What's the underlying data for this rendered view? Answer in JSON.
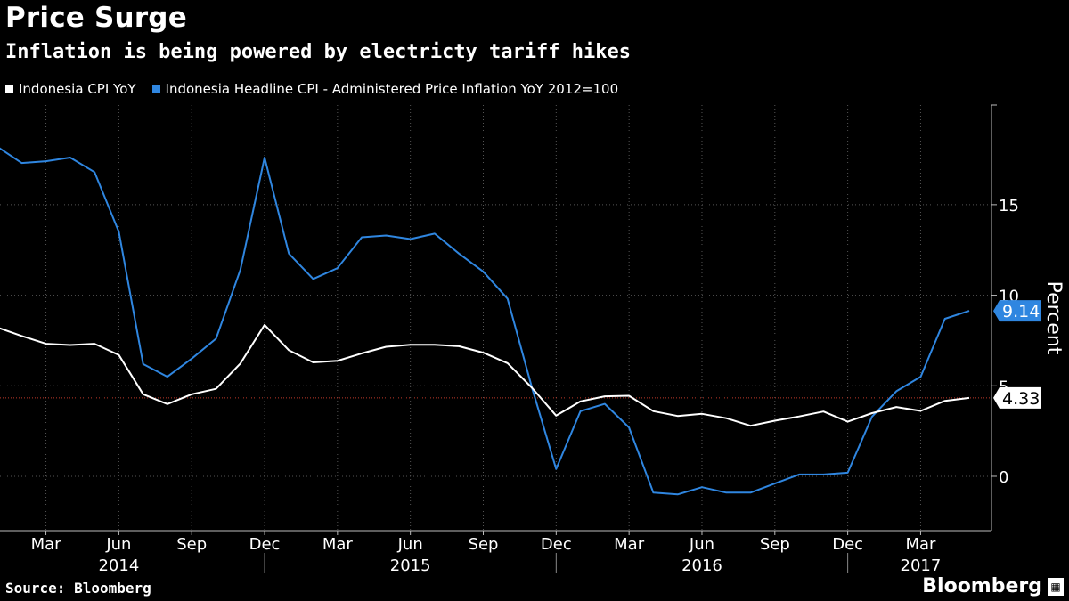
{
  "header": {
    "title": "Price Surge",
    "subtitle": "Inflation is being powered by electricty tariff hikes"
  },
  "footer": {
    "source": "Source: Bloomberg",
    "brand": "Bloomberg"
  },
  "colors": {
    "background": "#000000",
    "cpi_line": "#ffffff",
    "admin_line": "#2f86e0",
    "grid": "#444444",
    "reference_line": "#c0392b"
  },
  "chart_data": {
    "type": "line",
    "title": "Price Surge",
    "subtitle": "Inflation is being powered by electricty tariff hikes",
    "ylabel": "Percent",
    "xlabel": "",
    "ylim": [
      -3,
      20.5
    ],
    "yticks": [
      0,
      5,
      10,
      15
    ],
    "grid": true,
    "legend_position": "top-left",
    "x_start": "2014-01",
    "x_end": "2017-05",
    "x_ticks": [
      {
        "month": "2014-03",
        "label": "Mar"
      },
      {
        "month": "2014-06",
        "label": "Jun"
      },
      {
        "month": "2014-09",
        "label": "Sep"
      },
      {
        "month": "2014-12",
        "label": "Dec"
      },
      {
        "month": "2015-03",
        "label": "Mar"
      },
      {
        "month": "2015-06",
        "label": "Jun"
      },
      {
        "month": "2015-09",
        "label": "Sep"
      },
      {
        "month": "2015-12",
        "label": "Dec"
      },
      {
        "month": "2016-03",
        "label": "Mar"
      },
      {
        "month": "2016-06",
        "label": "Jun"
      },
      {
        "month": "2016-09",
        "label": "Sep"
      },
      {
        "month": "2016-12",
        "label": "Dec"
      },
      {
        "month": "2017-03",
        "label": "Mar"
      }
    ],
    "year_labels": [
      {
        "label": "2014",
        "month": "2014-06"
      },
      {
        "label": "2015",
        "month": "2015-06"
      },
      {
        "label": "2016",
        "month": "2016-06"
      },
      {
        "label": "2017",
        "month": "2017-03"
      }
    ],
    "year_boundaries": [
      "2014-12",
      "2015-12",
      "2016-12"
    ],
    "x": [
      "2014-01",
      "2014-02",
      "2014-03",
      "2014-04",
      "2014-05",
      "2014-06",
      "2014-07",
      "2014-08",
      "2014-09",
      "2014-10",
      "2014-11",
      "2014-12",
      "2015-01",
      "2015-02",
      "2015-03",
      "2015-04",
      "2015-05",
      "2015-06",
      "2015-07",
      "2015-08",
      "2015-09",
      "2015-10",
      "2015-11",
      "2015-12",
      "2016-01",
      "2016-02",
      "2016-03",
      "2016-04",
      "2016-05",
      "2016-06",
      "2016-07",
      "2016-08",
      "2016-09",
      "2016-10",
      "2016-11",
      "2016-12",
      "2017-01",
      "2017-02",
      "2017-03",
      "2017-04",
      "2017-05"
    ],
    "series": [
      {
        "name": "Indonesia CPI YoY",
        "color": "#ffffff",
        "values": [
          8.22,
          7.75,
          7.32,
          7.25,
          7.32,
          6.7,
          4.53,
          3.99,
          4.53,
          4.83,
          6.23,
          8.36,
          6.96,
          6.29,
          6.38,
          6.79,
          7.15,
          7.26,
          7.26,
          7.18,
          6.83,
          6.25,
          4.89,
          3.35,
          4.14,
          4.42,
          4.45,
          3.6,
          3.33,
          3.45,
          3.21,
          2.79,
          3.07,
          3.31,
          3.58,
          3.02,
          3.49,
          3.83,
          3.61,
          4.17,
          4.33
        ],
        "end_label": "4.33"
      },
      {
        "name": "Indonesia Headline CPI - Administered Price Inflation YoY 2012=100",
        "color": "#2f86e0",
        "values": [
          18.2,
          17.3,
          17.4,
          17.6,
          16.8,
          13.5,
          6.2,
          5.5,
          6.5,
          7.6,
          11.4,
          17.6,
          12.3,
          10.9,
          11.5,
          13.2,
          13.3,
          13.1,
          13.4,
          12.3,
          11.3,
          9.8,
          4.9,
          0.4,
          3.6,
          4.0,
          2.7,
          -0.9,
          -1.0,
          -0.6,
          -0.9,
          -0.9,
          -0.4,
          0.1,
          0.1,
          0.2,
          3.3,
          4.7,
          5.5,
          8.7,
          9.14
        ],
        "end_label": "9.14"
      }
    ],
    "reference_line": 4.33
  }
}
